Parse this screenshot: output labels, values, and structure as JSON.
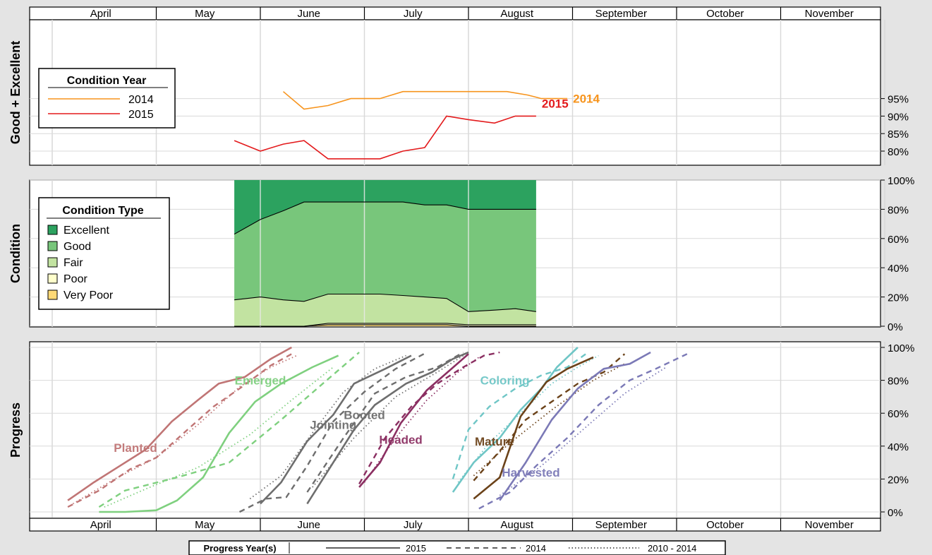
{
  "months": [
    "April",
    "May",
    "June",
    "July",
    "August",
    "September",
    "October",
    "November"
  ],
  "chart_data": [
    {
      "type": "line",
      "ylabel": "Good + Excellent",
      "y_ticks": [
        "80%",
        "85%",
        "90%",
        "95%"
      ],
      "ylim": [
        78,
        100
      ],
      "grid": true,
      "legend": {
        "title": "Condition Year",
        "placement": "left",
        "entries": [
          "2014",
          "2015"
        ]
      },
      "series": [
        {
          "name": "2014",
          "color": "#f7941d",
          "label": "2014",
          "x": [
            2.22,
            2.42,
            2.65,
            2.87,
            3.15,
            3.37,
            3.65,
            3.87,
            4.15,
            4.37,
            4.57,
            4.7,
            4.95
          ],
          "y": [
            97,
            92,
            93,
            95,
            95,
            97,
            97,
            97,
            97,
            97,
            96,
            95,
            95
          ]
        },
        {
          "name": "2015",
          "color": "#e31a1c",
          "label": "2015",
          "x": [
            1.75,
            2.0,
            2.22,
            2.42,
            2.65,
            2.87,
            3.15,
            3.37,
            3.58,
            3.79,
            4.0,
            4.25,
            4.45,
            4.65
          ],
          "y": [
            83,
            80,
            82,
            83,
            77.8,
            77.8,
            77.8,
            80,
            81,
            90,
            89,
            88,
            90,
            90
          ]
        }
      ]
    },
    {
      "type": "area",
      "ylabel": "Condition",
      "y_ticks": [
        "0%",
        "20%",
        "40%",
        "60%",
        "80%",
        "100%"
      ],
      "ylim": [
        0,
        100
      ],
      "grid": true,
      "stacking": "cumulative",
      "legend": {
        "title": "Condition Type",
        "placement": "left",
        "entries": [
          {
            "name": "Excellent",
            "color": "#2ca25f"
          },
          {
            "name": "Good",
            "color": "#78c67b"
          },
          {
            "name": "Fair",
            "color": "#c2e3a1"
          },
          {
            "name": "Poor",
            "color": "#ffffcc"
          },
          {
            "name": "Very Poor",
            "color": "#fed976"
          }
        ]
      },
      "x": [
        1.75,
        2.0,
        2.22,
        2.42,
        2.65,
        2.87,
        3.15,
        3.37,
        3.58,
        3.79,
        4.0,
        4.25,
        4.45,
        4.65
      ],
      "cumulative": {
        "very_poor": [
          0,
          0,
          0,
          0,
          1,
          1,
          1,
          1,
          1,
          1,
          0,
          0,
          0,
          0
        ],
        "poor": [
          0,
          0,
          0,
          0,
          2,
          2,
          2,
          2,
          2,
          2,
          1,
          1,
          1,
          1
        ],
        "fair": [
          18,
          20,
          18,
          17,
          22,
          22,
          22,
          21,
          20,
          19,
          10,
          11,
          12,
          10
        ],
        "good": [
          63,
          73,
          79,
          85,
          85,
          85,
          85,
          85,
          83,
          83,
          80,
          80,
          80,
          80
        ],
        "excellent": [
          100,
          100,
          100,
          100,
          100,
          100,
          100,
          100,
          100,
          100,
          100,
          100,
          100,
          100
        ]
      }
    },
    {
      "type": "line",
      "ylabel": "Progress",
      "y_ticks": [
        "0%",
        "20%",
        "40%",
        "60%",
        "80%",
        "100%"
      ],
      "ylim": [
        -3,
        103
      ],
      "grid": true,
      "legend": {
        "title": "Progress Year(s)",
        "placement": "bottom",
        "entries": [
          {
            "name": "2015",
            "dash": "solid"
          },
          {
            "name": "2014",
            "dash": "dashed"
          },
          {
            "name": "2010 - 2014",
            "dash": "dotted"
          }
        ]
      },
      "stages": [
        {
          "name": "Planted",
          "color": "#c07575",
          "label": {
            "x": 0.8,
            "y": 39
          },
          "s2015": {
            "x": [
              0.15,
              0.4,
              0.65,
              0.9,
              1.15,
              1.4,
              1.6,
              1.85,
              2.1,
              2.3
            ],
            "y": [
              7,
              18,
              28,
              38,
              55,
              68,
              78,
              82,
              93,
              100
            ]
          },
          "s2014": {
            "x": [
              0.15,
              0.45,
              0.75,
              1.0,
              1.3,
              1.55,
              1.8,
              2.1,
              2.3
            ],
            "y": [
              3,
              13,
              26,
              33,
              50,
              64,
              75,
              89,
              96
            ]
          },
          "s2010": {
            "x": [
              0.2,
              0.6,
              1.0,
              1.4,
              1.8,
              2.1,
              2.35
            ],
            "y": [
              5,
              20,
              33,
              53,
              76,
              88,
              95
            ]
          }
        },
        {
          "name": "Emerged",
          "color": "#7fd07f",
          "label": {
            "x": 2.0,
            "y": 80
          },
          "s2015": {
            "x": [
              0.45,
              0.7,
              1.0,
              1.2,
              1.45,
              1.7,
              1.95,
              2.2,
              2.5,
              2.75
            ],
            "y": [
              0,
              0,
              1,
              7,
              21,
              48,
              67,
              78,
              88,
              95
            ]
          },
          "s2014": {
            "x": [
              0.45,
              0.7,
              1.2,
              1.7,
              2.2,
              2.6,
              2.95
            ],
            "y": [
              3,
              13,
              21,
              30,
              56,
              78,
              97
            ]
          },
          "s2010": {
            "x": [
              0.5,
              0.9,
              1.4,
              1.9,
              2.3,
              2.7
            ],
            "y": [
              3,
              14,
              27,
              47,
              68,
              88
            ]
          }
        },
        {
          "name": "Jointing",
          "color": "#6e6e6e",
          "label": {
            "x": 2.7,
            "y": 53
          },
          "s2015": {
            "x": [
              2.0,
              2.2,
              2.45,
              2.7,
              2.9,
              3.2,
              3.45
            ],
            "y": [
              5,
              18,
              43,
              59,
              78,
              87,
              95
            ]
          },
          "s2014": {
            "x": [
              1.8,
              2.05,
              2.25,
              2.45,
              2.7,
              3.0,
              3.3,
              3.6
            ],
            "y": [
              0,
              8,
              9,
              28,
              55,
              73,
              87,
              97
            ]
          },
          "s2010": {
            "x": [
              1.9,
              2.2,
              2.5,
              2.8,
              3.1,
              3.4
            ],
            "y": [
              8,
              22,
              48,
              73,
              87,
              95
            ]
          }
        },
        {
          "name": "Booted",
          "color": "#6e6e6e",
          "label": {
            "x": 3.0,
            "y": 59
          },
          "s2015": {
            "x": [
              2.45,
              2.7,
              2.9,
              3.1,
              3.4,
              3.65,
              3.85,
              4.0
            ],
            "y": [
              5,
              30,
              50,
              65,
              78,
              85,
              93,
              97
            ]
          },
          "s2014": {
            "x": [
              2.45,
              2.8,
              3.1,
              3.4,
              3.7,
              3.95
            ],
            "y": [
              12,
              45,
              72,
              82,
              88,
              97
            ]
          },
          "s2010": {
            "x": [
              2.5,
              2.9,
              3.3,
              3.7,
              4.0
            ],
            "y": [
              15,
              45,
              70,
              85,
              97
            ]
          }
        },
        {
          "name": "Headed",
          "color": "#8b2f62",
          "label": {
            "x": 3.35,
            "y": 44
          },
          "s2015": {
            "x": [
              2.95,
              3.15,
              3.35,
              3.6,
              3.8,
              4.0
            ],
            "y": [
              15,
              30,
              54,
              74,
              85,
              96
            ]
          },
          "s2014": {
            "x": [
              2.95,
              3.2,
              3.45,
              3.7,
              3.95,
              4.15,
              4.3
            ],
            "y": [
              17,
              45,
              64,
              78,
              88,
              95,
              97
            ]
          },
          "s2010": {
            "x": [
              3.0,
              3.3,
              3.6,
              3.9,
              4.1
            ],
            "y": [
              18,
              45,
              68,
              85,
              94
            ]
          }
        },
        {
          "name": "Coloring",
          "color": "#6fc6c6",
          "label": {
            "x": 4.35,
            "y": 80
          },
          "s2015": {
            "x": [
              3.85,
              4.05,
              4.3,
              4.5,
              4.7,
              4.85,
              5.05
            ],
            "y": [
              12,
              30,
              45,
              62,
              75,
              88,
              100
            ]
          },
          "s2014": {
            "x": [
              3.85,
              4.0,
              4.2,
              4.45,
              4.7,
              4.95,
              5.15
            ],
            "y": [
              20,
              50,
              64,
              75,
              83,
              88,
              97
            ]
          },
          "s2010": {
            "x": [
              3.9,
              4.2,
              4.5,
              4.8,
              5.05,
              5.25
            ],
            "y": [
              18,
              42,
              60,
              78,
              88,
              95
            ]
          }
        },
        {
          "name": "Mature",
          "color": "#6b4219",
          "label": {
            "x": 4.25,
            "y": 43
          },
          "s2015": {
            "x": [
              4.05,
              4.3,
              4.5,
              4.75,
              4.95,
              5.2
            ],
            "y": [
              8,
              21,
              58,
              79,
              87,
              94
            ]
          },
          "s2014": {
            "x": [
              4.05,
              4.3,
              4.55,
              4.8,
              5.05,
              5.3,
              5.5
            ],
            "y": [
              19,
              37,
              56,
              67,
              78,
              85,
              96
            ]
          },
          "s2010": {
            "x": [
              4.05,
              4.4,
              4.8,
              5.2,
              5.5
            ],
            "y": [
              22,
              42,
              62,
              80,
              90
            ]
          }
        },
        {
          "name": "Harvested",
          "color": "#7b79b6",
          "label": {
            "x": 4.6,
            "y": 24
          },
          "s2015": {
            "x": [
              4.3,
              4.55,
              4.8,
              5.05,
              5.3,
              5.55,
              5.75
            ],
            "y": [
              7,
              30,
              56,
              75,
              87,
              90,
              97
            ]
          },
          "s2014": {
            "x": [
              4.1,
              4.4,
              4.65,
              4.95,
              5.25,
              5.55,
              5.8,
              6.1
            ],
            "y": [
              2,
              12,
              28,
              45,
              65,
              80,
              87,
              96
            ]
          },
          "s2010": {
            "x": [
              4.3,
              4.7,
              5.1,
              5.5,
              5.9
            ],
            "y": [
              10,
              28,
              50,
              72,
              88
            ]
          }
        }
      ]
    }
  ]
}
